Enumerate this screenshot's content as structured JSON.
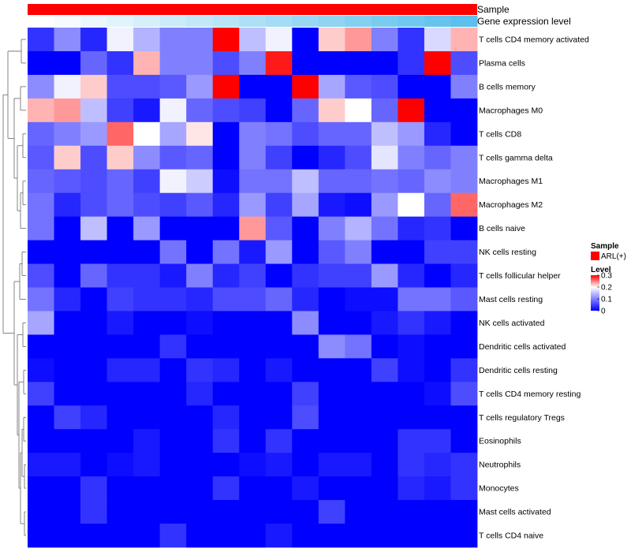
{
  "chart_data": {
    "type": "heatmap",
    "annotations": [
      {
        "name": "Sample",
        "color": "#ff0000"
      },
      {
        "name": "Gene expression level",
        "gradient": [
          "#ffffff",
          "#5bc0eb"
        ]
      }
    ],
    "rows": [
      "T cells CD4 memory activated",
      "Plasma cells",
      "B cells memory",
      "Macrophages M0",
      "T cells CD8",
      "T cells gamma delta",
      "Macrophages M1",
      "Macrophages M2",
      "B cells naive",
      "NK cells resting",
      "T cells follicular helper",
      "Mast cells resting",
      "NK cells activated",
      "Dendritic cells activated",
      "Dendritic cells resting",
      "T cells CD4 memory resting",
      "T cells regulatory  Tregs",
      "Eosinophils",
      "Neutrophils",
      "Monocytes",
      "Mast cells activated",
      "T cells CD4 naive"
    ],
    "values": [
      [
        0.04,
        0.11,
        0.03,
        0.19,
        0.14,
        0.1,
        0.1,
        0.3,
        0.15,
        0.19,
        0.0,
        0.22,
        0.24,
        0.1,
        0.04,
        0.17,
        0.23
      ],
      [
        0.0,
        0.0,
        0.08,
        0.04,
        0.23,
        0.1,
        0.1,
        0.06,
        0.1,
        0.29,
        0.0,
        0.0,
        0.0,
        0.0,
        0.04,
        0.3,
        0.06
      ],
      [
        0.11,
        0.19,
        0.22,
        0.06,
        0.06,
        0.07,
        0.12,
        0.3,
        0.0,
        0.0,
        0.3,
        0.13,
        0.07,
        0.06,
        0.0,
        0.0,
        0.1
      ],
      [
        0.23,
        0.24,
        0.15,
        0.05,
        0.02,
        0.19,
        0.08,
        0.06,
        0.05,
        0.0,
        0.08,
        0.22,
        0.2,
        0.08,
        0.3,
        0.0,
        0.0
      ],
      [
        0.08,
        0.1,
        0.12,
        0.26,
        0.2,
        0.13,
        0.21,
        0.0,
        0.1,
        0.09,
        0.06,
        0.08,
        0.08,
        0.15,
        0.12,
        0.03,
        0.0
      ],
      [
        0.07,
        0.22,
        0.06,
        0.22,
        0.11,
        0.07,
        0.08,
        0.0,
        0.1,
        0.05,
        0.0,
        0.03,
        0.06,
        0.18,
        0.1,
        0.08,
        0.1
      ],
      [
        0.08,
        0.07,
        0.06,
        0.08,
        0.05,
        0.19,
        0.16,
        0.01,
        0.09,
        0.09,
        0.15,
        0.08,
        0.08,
        0.09,
        0.08,
        0.11,
        0.1
      ],
      [
        0.09,
        0.03,
        0.06,
        0.08,
        0.06,
        0.05,
        0.07,
        0.03,
        0.12,
        0.05,
        0.13,
        0.02,
        0.01,
        0.12,
        0.2,
        0.08,
        0.26
      ],
      [
        0.09,
        0.0,
        0.15,
        0.0,
        0.12,
        0.0,
        0.0,
        0.0,
        0.24,
        0.07,
        0.0,
        0.1,
        0.14,
        0.09,
        0.03,
        0.04,
        0.0
      ],
      [
        0.0,
        0.0,
        0.0,
        0.0,
        0.0,
        0.09,
        0.0,
        0.09,
        0.02,
        0.12,
        0.0,
        0.07,
        0.1,
        0.0,
        0.0,
        0.05,
        0.05
      ],
      [
        0.06,
        0.0,
        0.08,
        0.04,
        0.04,
        0.02,
        0.1,
        0.03,
        0.05,
        0.0,
        0.04,
        0.05,
        0.05,
        0.12,
        0.03,
        0.0,
        0.03
      ],
      [
        0.09,
        0.03,
        0.0,
        0.05,
        0.04,
        0.04,
        0.03,
        0.06,
        0.06,
        0.08,
        0.03,
        0.0,
        0.01,
        0.01,
        0.09,
        0.09,
        0.07
      ],
      [
        0.13,
        0.0,
        0.0,
        0.02,
        0.0,
        0.0,
        0.01,
        0.0,
        0.0,
        0.0,
        0.11,
        0.0,
        0.0,
        0.02,
        0.04,
        0.02,
        0.0
      ],
      [
        0.0,
        0.0,
        0.0,
        0.0,
        0.0,
        0.04,
        0.0,
        0.0,
        0.0,
        0.0,
        0.0,
        0.11,
        0.09,
        0.0,
        0.01,
        0.0,
        0.0
      ],
      [
        0.01,
        0.0,
        0.0,
        0.03,
        0.03,
        0.0,
        0.04,
        0.03,
        0.0,
        0.02,
        0.0,
        0.0,
        0.0,
        0.05,
        0.01,
        0.0,
        0.04
      ],
      [
        0.05,
        0.0,
        0.0,
        0.0,
        0.0,
        0.0,
        0.03,
        0.0,
        0.0,
        0.0,
        0.05,
        0.0,
        0.0,
        0.0,
        0.0,
        0.01,
        0.06
      ],
      [
        0.0,
        0.05,
        0.03,
        0.0,
        0.0,
        0.0,
        0.0,
        0.03,
        0.0,
        0.0,
        0.06,
        0.0,
        0.0,
        0.0,
        0.0,
        0.0,
        0.0
      ],
      [
        0.0,
        0.0,
        0.0,
        0.0,
        0.02,
        0.0,
        0.0,
        0.04,
        0.0,
        0.04,
        0.0,
        0.0,
        0.0,
        0.0,
        0.04,
        0.04,
        0.0
      ],
      [
        0.02,
        0.02,
        0.0,
        0.01,
        0.02,
        0.0,
        0.0,
        0.0,
        0.01,
        0.02,
        0.0,
        0.02,
        0.02,
        0.0,
        0.04,
        0.03,
        0.04
      ],
      [
        0.0,
        0.0,
        0.04,
        0.0,
        0.0,
        0.0,
        0.0,
        0.04,
        0.0,
        0.0,
        0.02,
        0.0,
        0.0,
        0.0,
        0.03,
        0.02,
        0.04
      ],
      [
        0.0,
        0.0,
        0.04,
        0.0,
        0.0,
        0.0,
        0.0,
        0.0,
        0.0,
        0.0,
        0.0,
        0.05,
        0.0,
        0.0,
        0.0,
        0.0,
        0.0
      ],
      [
        0.0,
        0.0,
        0.0,
        0.0,
        0.0,
        0.04,
        0.0,
        0.0,
        0.0,
        0.02,
        0.0,
        0.0,
        0.0,
        0.0,
        0.0,
        0.0,
        0.0
      ]
    ],
    "gene_expression_gradient": [
      0.0,
      0.06,
      0.12,
      0.18,
      0.25,
      0.31,
      0.37,
      0.43,
      0.5,
      0.56,
      0.62,
      0.68,
      0.75,
      0.81,
      0.87,
      0.93,
      1.0
    ],
    "color_scale": {
      "min": 0,
      "max": 0.3,
      "low": "#0000ff",
      "mid": "#ffffff",
      "high": "#ff0000"
    },
    "legend": {
      "sample_title": "Sample",
      "sample_label": "ARL(+)",
      "sample_color": "#ff0000",
      "level_title": "Level",
      "level_ticks": [
        "0.3",
        "0.2",
        "0.1",
        "0"
      ],
      "level_tick_values": [
        0.3,
        0.2,
        0.1,
        0
      ]
    },
    "row_dendrogram": true
  }
}
